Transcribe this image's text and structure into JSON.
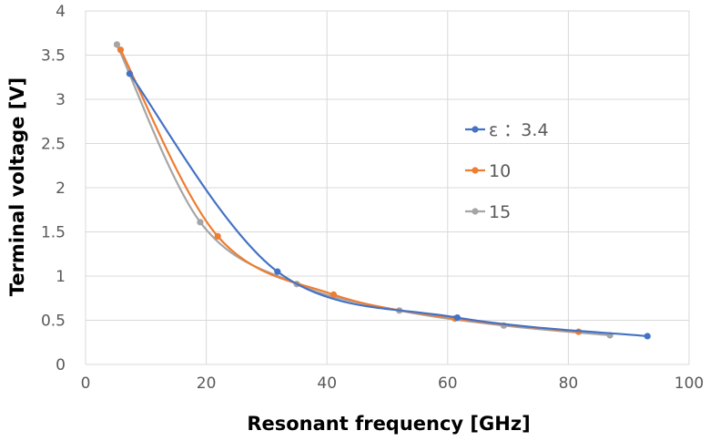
{
  "chart_data": {
    "type": "scatter",
    "title": "",
    "xlabel": "Resonant frequency [GHz]",
    "ylabel": "Terminal voltage [V]",
    "xlim": [
      0,
      100
    ],
    "ylim": [
      0,
      4
    ],
    "x_ticks": [
      "0",
      "20",
      "40",
      "60",
      "80",
      "100"
    ],
    "y_ticks": [
      "0",
      "0.5",
      "1",
      "1.5",
      "2",
      "2.5",
      "3",
      "3.5",
      "4"
    ],
    "grid": true,
    "smooth_lines": true,
    "legend_position": "right",
    "series": [
      {
        "name": "ε ：3.4",
        "color": "#4472c4",
        "x": [
          7.3,
          31.8,
          61.6,
          93.1
        ],
        "y": [
          3.29,
          1.05,
          0.53,
          0.32
        ]
      },
      {
        "name": "10",
        "color": "#ed7d31",
        "x": [
          5.8,
          21.9,
          41.1,
          61.2,
          81.7
        ],
        "y": [
          3.56,
          1.45,
          0.79,
          0.52,
          0.37
        ]
      },
      {
        "name": "15",
        "color": "#a5a5a5",
        "x": [
          5.2,
          19.0,
          35.0,
          52.0,
          69.3,
          86.9
        ],
        "y": [
          3.62,
          1.61,
          0.91,
          0.61,
          0.44,
          0.33
        ]
      }
    ]
  }
}
